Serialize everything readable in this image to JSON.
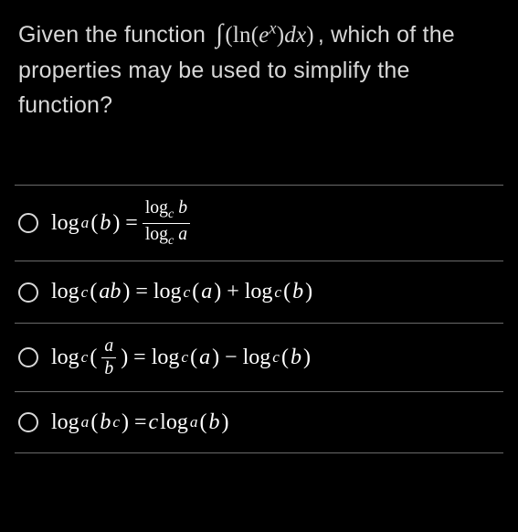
{
  "question": {
    "prefix": "Given the function ",
    "integral_html": "<span class='int'>∫</span>(ln(<span class='ital'>e</span><sup>x</sup>)<span class='ital'>dx</span>)",
    "suffix": ", which of the properties may be used to simplify the function?"
  },
  "options": [
    {
      "id": "change-of-base",
      "formula_html": "log<sub>a</sub>(<span class='ital'>b</span>) = <span class='frac'><span class='num'>log<sub>c</sub> <span class='ital'>b</span></span><span class='den'>log<sub>c</sub> <span class='ital'>a</span></span></span>"
    },
    {
      "id": "product-rule",
      "formula_html": "log<sub>c</sub>(<span class='ital'>ab</span>) = log<sub>c</sub>(<span class='ital'>a</span>) + log<sub>c</sub>(<span class='ital'>b</span>)"
    },
    {
      "id": "quotient-rule",
      "formula_html": "log<sub>c</sub>(<span class='frac'><span class='num'><span class='ital'>a</span></span><span class='den'><span class='ital'>b</span></span></span>) = log<sub>c</sub>(<span class='ital'>a</span>) − log<sub>c</sub>(<span class='ital'>b</span>)"
    },
    {
      "id": "power-rule",
      "formula_html": "log<sub>a</sub>(<span class='ital'>b</span><sup>c</sup>) = <span class='ital'>c</span> log<sub>a</sub>(<span class='ital'>b</span>)"
    }
  ],
  "styles": {
    "background": "#000000",
    "text_color": "#d8d8d8",
    "formula_color": "#ffffff",
    "divider_color": "#6a6a6a",
    "radio_border": "#d8d8d8",
    "question_font_size": 25,
    "formula_font_size": 24
  }
}
